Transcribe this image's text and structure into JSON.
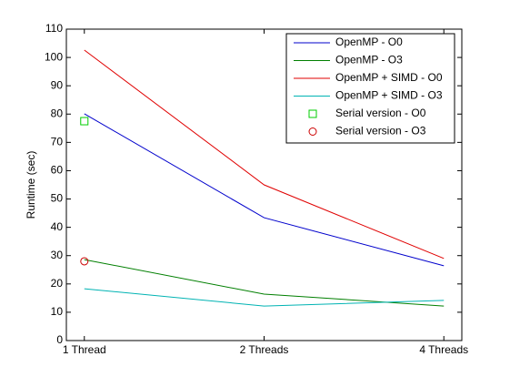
{
  "chart_data": {
    "type": "line",
    "ylabel": "Runtime (sec)",
    "categories": [
      "1 Thread",
      "2 Threads",
      "4 Threads"
    ],
    "series": [
      {
        "name": "OpenMP - O0",
        "color": "#0000cc",
        "values": [
          80.1,
          43.4,
          26.4
        ]
      },
      {
        "name": "OpenMP - O3",
        "color": "#007f00",
        "values": [
          28.6,
          16.4,
          12.2
        ]
      },
      {
        "name": "OpenMP + SIMD - O0",
        "color": "#e00000",
        "values": [
          102.6,
          55,
          29
        ]
      },
      {
        "name": "OpenMP + SIMD - O3",
        "color": "#00b3b3",
        "values": [
          18.3,
          12.2,
          14.2
        ]
      },
      {
        "name": "Serial version - O0",
        "color": "#00cc00",
        "marker": "square",
        "values": [
          77.5,
          null,
          null
        ]
      },
      {
        "name": "Serial version - O3",
        "color": "#cc0000",
        "marker": "circle",
        "values": [
          28,
          null,
          null
        ]
      }
    ],
    "ylim": [
      0,
      110
    ],
    "yticks": [
      0,
      10,
      20,
      30,
      40,
      50,
      60,
      70,
      80,
      90,
      100,
      110
    ],
    "legend": "northeast"
  }
}
